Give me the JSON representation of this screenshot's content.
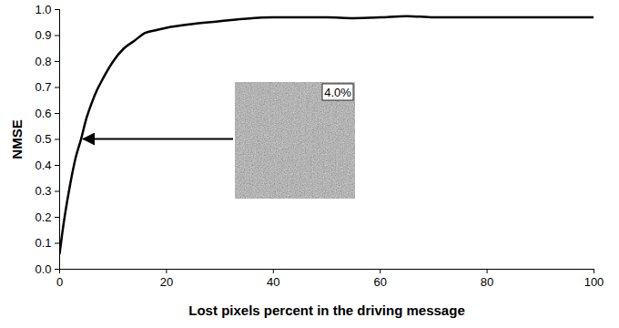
{
  "chart_data": {
    "type": "line",
    "x_label": "Lost pixels percent in the driving message",
    "y_label": "NMSE",
    "x": [
      0,
      0.5,
      1,
      2,
      3,
      4,
      5,
      6,
      7,
      8,
      10,
      12,
      14,
      16,
      18,
      20,
      25,
      30,
      35,
      40,
      45,
      50,
      55,
      60,
      65,
      70,
      80,
      90,
      100
    ],
    "values": [
      0.06,
      0.14,
      0.21,
      0.33,
      0.43,
      0.5,
      0.58,
      0.64,
      0.69,
      0.73,
      0.8,
      0.85,
      0.88,
      0.91,
      0.92,
      0.93,
      0.945,
      0.955,
      0.965,
      0.97,
      0.97,
      0.97,
      0.967,
      0.97,
      0.975,
      0.97,
      0.97,
      0.97,
      0.97
    ],
    "color": "#000000",
    "xlim": [
      0,
      100
    ],
    "xticks": [
      0,
      20,
      40,
      60,
      80,
      100
    ],
    "ylim": [
      0,
      1
    ],
    "yticks": [
      {
        "value": 0,
        "label": "0.0"
      },
      0.1,
      0.2,
      0.3,
      0.4,
      0.5,
      0.6,
      0.7,
      0.8,
      0.9,
      {
        "value": 1,
        "label": "1.0"
      }
    ],
    "grid": false,
    "annotations": [
      {
        "text": "4.0%",
        "x": 4,
        "y": 0.5
      }
    ]
  }
}
